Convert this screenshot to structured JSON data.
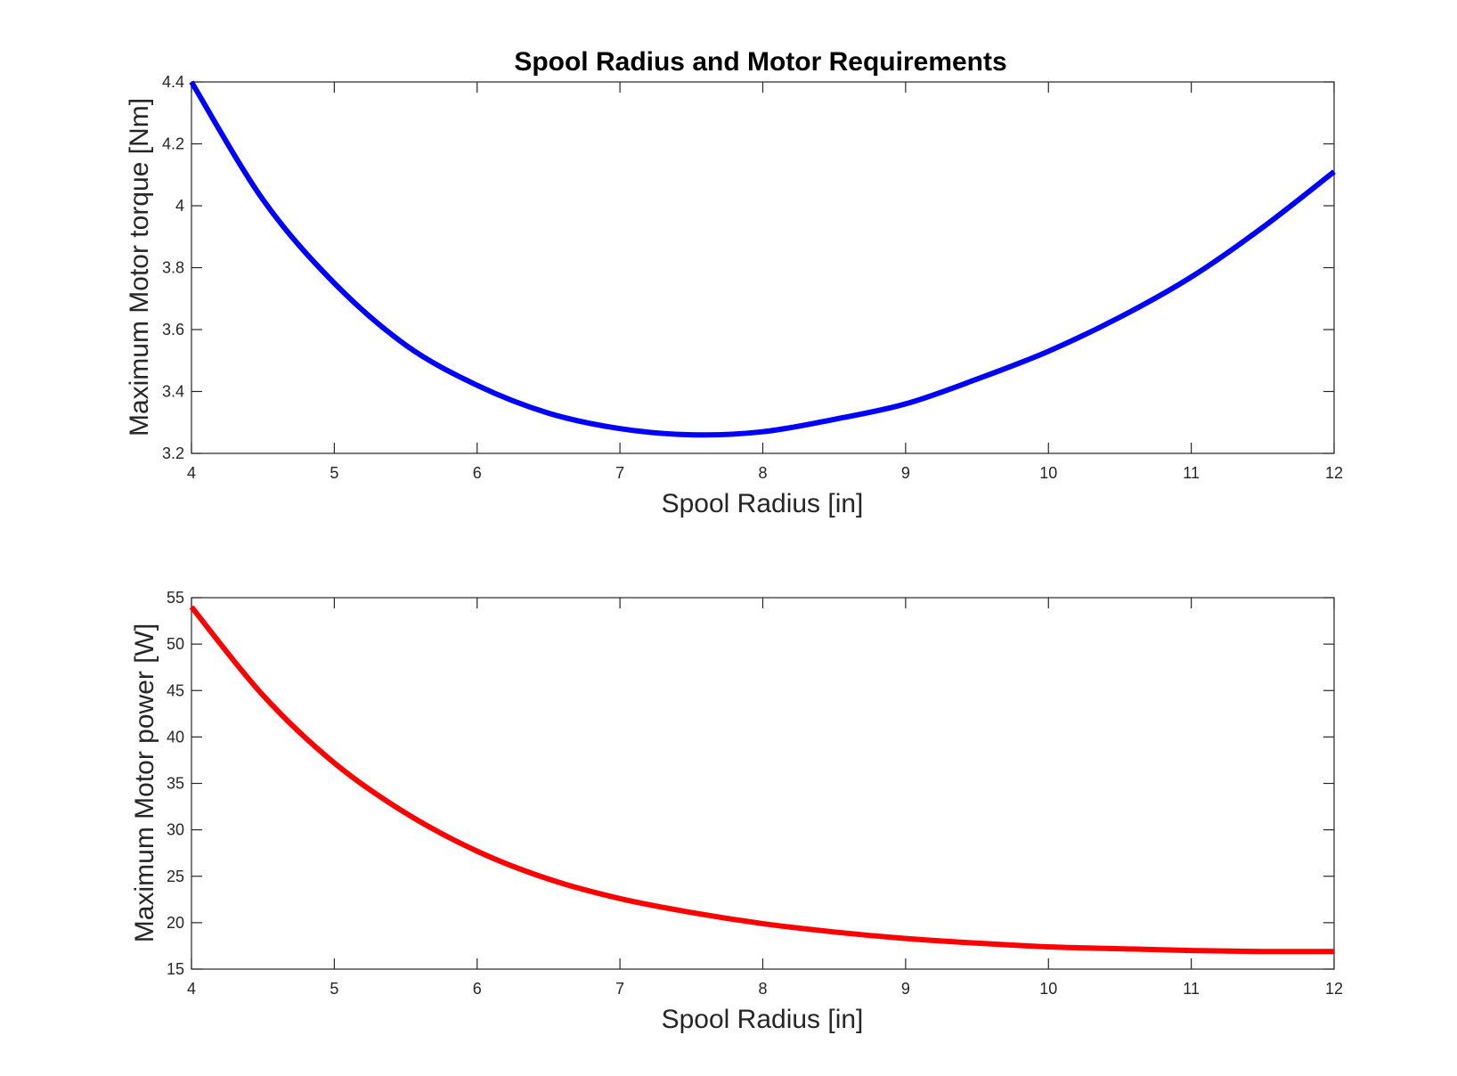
{
  "chart_data": [
    {
      "type": "line",
      "title": "Spool Radius and Motor Requirements",
      "xlabel": "Spool Radius [in]",
      "ylabel": "Maximum Motor torque [Nm]",
      "xlim": [
        4,
        12
      ],
      "ylim": [
        3.2,
        4.4
      ],
      "xticks": [
        "4",
        "5",
        "6",
        "7",
        "8",
        "9",
        "10",
        "11",
        "12"
      ],
      "yticks": [
        "3.2",
        "3.4",
        "3.6",
        "3.8",
        "4",
        "4.2",
        "4.4"
      ],
      "grid": false,
      "series": [
        {
          "color": "#0000ff",
          "x": [
            4,
            4.5,
            5,
            5.5,
            6,
            6.5,
            7,
            7.5,
            8,
            8.5,
            9,
            9.5,
            10,
            10.5,
            11,
            11.5,
            12
          ],
          "y": [
            4.4,
            4.02,
            3.75,
            3.55,
            3.42,
            3.33,
            3.28,
            3.26,
            3.27,
            3.31,
            3.36,
            3.44,
            3.53,
            3.64,
            3.77,
            3.93,
            4.11
          ]
        }
      ]
    },
    {
      "type": "line",
      "title": "",
      "xlabel": "Spool Radius [in]",
      "ylabel": "Maximum Motor power [W]",
      "xlim": [
        4,
        12
      ],
      "ylim": [
        15,
        55
      ],
      "xticks": [
        "4",
        "5",
        "6",
        "7",
        "8",
        "9",
        "10",
        "11",
        "12"
      ],
      "yticks": [
        "15",
        "20",
        "25",
        "30",
        "35",
        "40",
        "45",
        "50",
        "55"
      ],
      "grid": false,
      "series": [
        {
          "color": "#ff0000",
          "x": [
            4,
            4.5,
            5,
            5.5,
            6,
            6.5,
            7,
            7.5,
            8,
            8.5,
            9,
            9.5,
            10,
            10.5,
            11,
            11.5,
            12
          ],
          "y": [
            54.0,
            44.5,
            37.2,
            31.8,
            27.7,
            24.7,
            22.6,
            21.1,
            19.9,
            19.0,
            18.3,
            17.8,
            17.4,
            17.2,
            17.0,
            16.9,
            16.9
          ]
        }
      ]
    }
  ]
}
